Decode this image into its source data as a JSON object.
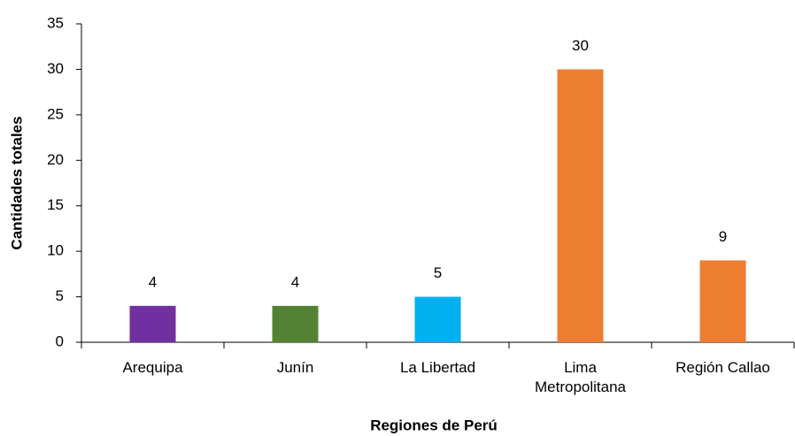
{
  "chart_data": {
    "type": "bar",
    "x_label": "Regiones de Perú",
    "y_label": "Cantidades totales",
    "categories": [
      "Arequipa",
      "Junín",
      "La Libertad",
      "Lima Metropolitana",
      "Región Callao"
    ],
    "values": [
      4,
      4,
      5,
      30,
      9
    ],
    "colors": [
      "#7030a0",
      "#548235",
      "#00b0f0",
      "#ed7d31",
      "#ed7d31"
    ],
    "ylim": [
      0,
      35
    ],
    "yticks": [
      0,
      5,
      10,
      15,
      20,
      25,
      30,
      35
    ],
    "grid": false
  }
}
